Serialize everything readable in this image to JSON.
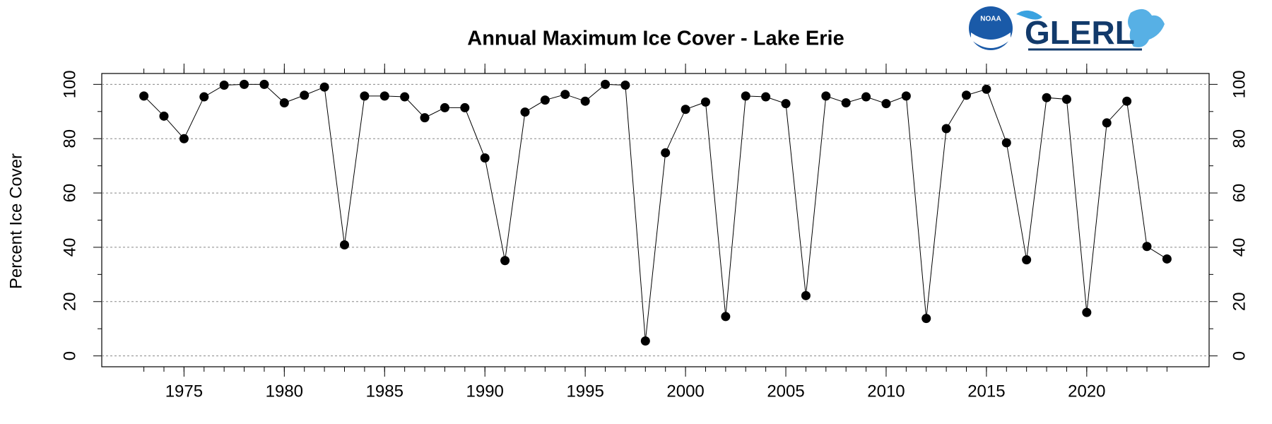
{
  "chart_data": {
    "type": "line",
    "title": "Annual Maximum Ice Cover - Lake Erie",
    "y_label": "Percent Ice Cover",
    "logo_agency": "NOAA",
    "logo_text": "GLERL",
    "x": [
      1973,
      1974,
      1975,
      1976,
      1977,
      1978,
      1979,
      1980,
      1981,
      1982,
      1983,
      1984,
      1985,
      1986,
      1987,
      1988,
      1989,
      1990,
      1991,
      1992,
      1993,
      1994,
      1995,
      1996,
      1997,
      1998,
      1999,
      2000,
      2001,
      2002,
      2003,
      2004,
      2005,
      2006,
      2007,
      2008,
      2009,
      2010,
      2011,
      2012,
      2013,
      2014,
      2015,
      2016,
      2017,
      2018,
      2019,
      2020,
      2021,
      2022,
      2023,
      2024
    ],
    "series": [
      {
        "color": "#000000",
        "values": [
          95.7,
          88.3,
          80.0,
          95.4,
          99.7,
          100.0,
          100.0,
          93.2,
          96.0,
          99.0,
          40.9,
          95.7,
          95.7,
          95.4,
          87.7,
          91.4,
          91.4,
          72.9,
          35.1,
          89.8,
          94.2,
          96.3,
          93.8,
          100.0,
          99.7,
          5.5,
          74.8,
          90.8,
          93.5,
          14.5,
          95.7,
          95.4,
          92.9,
          22.2,
          95.7,
          93.2,
          95.4,
          92.9,
          95.7,
          13.8,
          83.7,
          96.0,
          98.2,
          78.5,
          35.4,
          95.1,
          94.5,
          16.0,
          85.8,
          93.8,
          40.3,
          35.7
        ]
      }
    ],
    "xlim": [
      1970.9,
      2026.1
    ],
    "xticks": [
      1975,
      1980,
      1985,
      1990,
      1995,
      2000,
      2005,
      2010,
      2015,
      2020
    ],
    "ylim": [
      -4,
      104
    ],
    "yticks": [
      0,
      20,
      40,
      60,
      80,
      100
    ],
    "yticks_minor": [
      10,
      30,
      50,
      70,
      90
    ],
    "grid": true
  }
}
